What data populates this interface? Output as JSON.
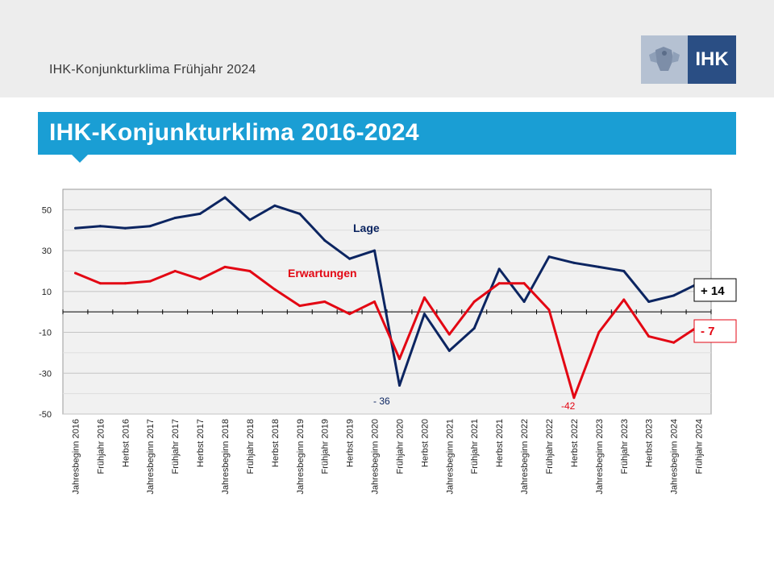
{
  "header": {
    "subtitle": "IHK-Konjunkturklima  Frühjahr 2024",
    "logo_text": "IHK"
  },
  "title": "IHK-Konjunkturklima 2016-2024",
  "colors": {
    "lage": "#0c2561",
    "erwartungen": "#e30613",
    "banner": "#1a9ed4",
    "plot_bg": "#f1f1f1"
  },
  "chart_data": {
    "type": "line",
    "categories": [
      "Jahresbeginn 2016",
      "Frühjahr 2016",
      "Herbst 2016",
      "Jahresbeginn 2017",
      "Frühjahr 2017",
      "Herbst 2017",
      "Jahresbeginn 2018",
      "Frühjahr 2018",
      "Herbst 2018",
      "Jahresbeginn 2019",
      "Frühjahr 2019",
      "Herbst 2019",
      "Jahresbeginn 2020",
      "Frühjahr 2020",
      "Herbst 2020",
      "Jahresbeginn 2021",
      "Frühjahr 2021",
      "Herbst 2021",
      "Jahresbeginn 2022",
      "Frühjahr 2022",
      "Herbst 2022",
      "Jahresbeginn 2023",
      "Frühjahr 2023",
      "Herbst 2023",
      "Jahresbeginn 2024",
      "Frühjahr 2024"
    ],
    "series": [
      {
        "name": "Lage",
        "values": [
          41,
          42,
          41,
          42,
          46,
          48,
          56,
          45,
          52,
          48,
          35,
          26,
          30,
          -36,
          -1,
          -19,
          -8,
          21,
          5,
          27,
          24,
          22,
          20,
          5,
          8,
          14
        ]
      },
      {
        "name": "Erwartungen",
        "values": [
          19,
          14,
          14,
          15,
          20,
          16,
          22,
          20,
          11,
          3,
          5,
          -1,
          5,
          -23,
          7,
          -11,
          5,
          14,
          14,
          1,
          -42,
          -10,
          6,
          -12,
          -15,
          -7
        ]
      }
    ],
    "yticks": [
      50,
      30,
      10,
      -10,
      -30,
      -50
    ],
    "ytick_labels": [
      "50",
      "30",
      "10",
      "-10",
      "-30",
      "-50"
    ],
    "ylim": [
      -50,
      60
    ],
    "annotations": {
      "lage_label": "Lage",
      "erwartungen_label": "Erwartungen",
      "lage_min": "- 36",
      "erwartungen_min": "-42",
      "lage_last": "+ 14",
      "erwartungen_last": "- 7"
    },
    "title": "",
    "xlabel": "",
    "ylabel": ""
  }
}
